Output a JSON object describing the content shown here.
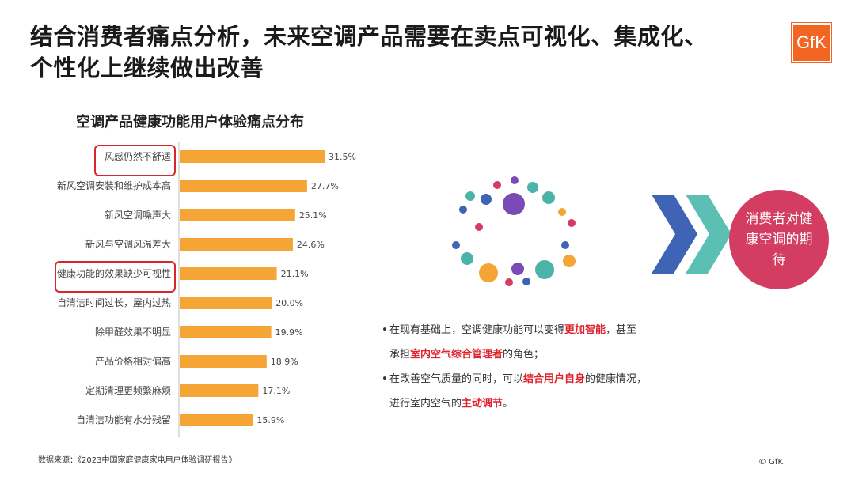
{
  "header": {
    "title_line1": "结合消费者痛点分析，未来空调产品需要在卖点可视化、集成化、",
    "title_line2": "个性化上继续做出改善",
    "logo_text": "GfK"
  },
  "chart_data": {
    "type": "bar",
    "orientation": "horizontal",
    "title": "空调产品健康功能用户体验痛点分布",
    "categories": [
      "风感仍然不舒适",
      "新风空调安装和维护成本高",
      "新风空调噪声大",
      "新风与空调风温差大",
      "健康功能的效果缺少可视性",
      "自清洁时间过长，屋内过热",
      "除甲醛效果不明显",
      "产品价格相对偏高",
      "定期清理更频繁麻烦",
      "自清洁功能有水分残留"
    ],
    "values": [
      31.5,
      27.7,
      25.1,
      24.6,
      21.1,
      20.0,
      19.9,
      18.9,
      17.1,
      15.9
    ],
    "value_labels": [
      "31.5%",
      "27.7%",
      "25.1%",
      "24.6%",
      "21.1%",
      "20.0%",
      "19.9%",
      "18.9%",
      "17.1%",
      "15.9%"
    ],
    "highlighted": [
      "风感仍然不舒适",
      "健康功能的效果缺少可视性"
    ],
    "bar_color": "#f5a535",
    "highlight_color": "#d8262f"
  },
  "right_panel": {
    "bubble_text": "消费者对健康空调的期待",
    "bubble_color": "#d43d62",
    "chevron_colors": [
      "#3f63b5",
      "#5cbfb3"
    ],
    "dot_colors": [
      "#7b4bb5",
      "#f5a535",
      "#4bb3a8",
      "#d43d62",
      "#3f63b5"
    ],
    "bullet1_pre": "在现有基础上，空调健康功能可以变得",
    "bullet1_hl1": "更加智能",
    "bullet1_mid": "，甚至",
    "bullet1_pre2": "承担",
    "bullet1_hl2": "室内空气综合管理者",
    "bullet1_post": "的角色；",
    "bullet2_pre": "在改善空气质量的同时，可以",
    "bullet2_hl1": "结合用户自身",
    "bullet2_mid": "的健康情况，",
    "bullet2_pre2": "进行室内空气的",
    "bullet2_hl2": "主动调节",
    "bullet2_post": "。",
    "bullet_marker": "•"
  },
  "footer": {
    "source": "数据来源：《2023中国家庭健康家电用户体验调研报告》",
    "copyright": "© GfK"
  }
}
